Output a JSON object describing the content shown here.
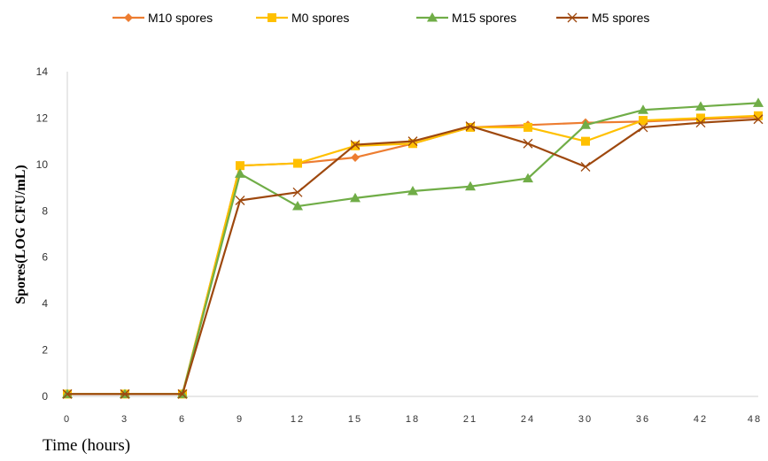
{
  "chart_data": {
    "type": "line",
    "title": "",
    "xlabel": "Time (hours)",
    "ylabel": "Spores(LOG CFU/mL)",
    "categories": [
      "0",
      "3",
      "6",
      "9",
      "12",
      "15",
      "18",
      "21",
      "24",
      "30",
      "36",
      "42",
      "48"
    ],
    "ylim": [
      0,
      14
    ],
    "yticks": [
      0,
      2,
      4,
      6,
      8,
      10,
      12,
      14
    ],
    "grid": false,
    "legend_position": "top",
    "series": [
      {
        "name": "M10 spores",
        "color": "#ED7D31",
        "marker": "diamond",
        "values": [
          0.1,
          0.1,
          0.1,
          9.95,
          10.05,
          10.3,
          10.9,
          11.6,
          11.7,
          11.8,
          11.85,
          11.95,
          12.05
        ]
      },
      {
        "name": "M0 spores",
        "color": "#FFC000",
        "marker": "square",
        "values": [
          0.1,
          0.1,
          0.1,
          9.95,
          10.05,
          10.8,
          10.9,
          11.6,
          11.6,
          11.0,
          11.9,
          12.0,
          12.1
        ]
      },
      {
        "name": "M15 spores",
        "color": "#70AD47",
        "marker": "triangle",
        "values": [
          0.1,
          0.1,
          0.1,
          9.6,
          8.2,
          8.55,
          8.85,
          9.05,
          9.4,
          11.7,
          12.35,
          12.5,
          12.65
        ]
      },
      {
        "name": "M5 spores",
        "color": "#9E480E",
        "marker": "x",
        "values": [
          0.1,
          0.1,
          0.1,
          8.45,
          8.8,
          10.85,
          11.0,
          11.65,
          10.9,
          9.9,
          11.6,
          11.8,
          11.95
        ]
      }
    ]
  }
}
